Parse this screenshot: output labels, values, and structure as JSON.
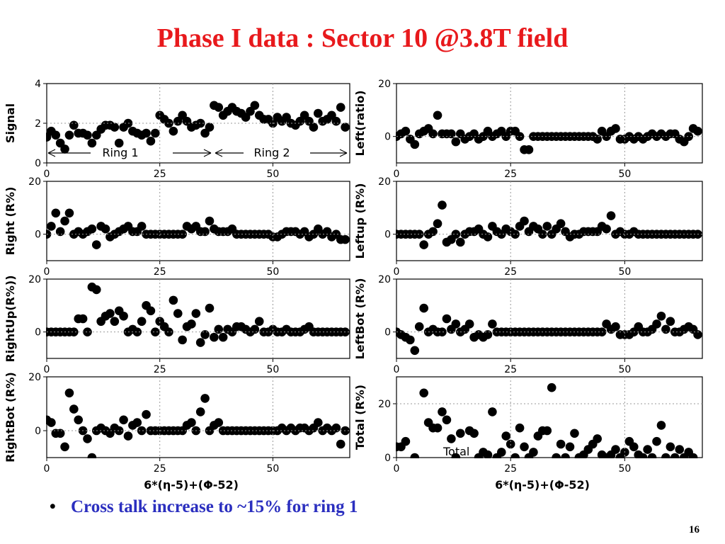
{
  "title": "Phase I data : Sector 10 @3.8T field",
  "bullet": "Cross talk increase to ~15% for ring 1",
  "page_number": "16",
  "colors": {
    "title": "#e8191c",
    "bullet": "#2b2fbf",
    "marker": "#000000",
    "grid": "#999999"
  },
  "chart_data": [
    {
      "type": "scatter",
      "ylabel": "Signal",
      "xlabel": "",
      "xlim": [
        0,
        67
      ],
      "ylim": [
        0,
        4
      ],
      "xticks": [
        "0",
        "25",
        "50"
      ],
      "xtick_values": [
        0,
        25,
        50
      ],
      "yticks": [
        "0",
        "2",
        "4"
      ],
      "ytick_values": [
        0,
        2,
        4
      ],
      "annotations": [
        "Ring 1",
        "Ring 2"
      ],
      "x": [
        0,
        1,
        2,
        3,
        4,
        5,
        6,
        7,
        8,
        9,
        10,
        11,
        12,
        13,
        14,
        15,
        16,
        17,
        18,
        19,
        20,
        21,
        22,
        23,
        24,
        25,
        26,
        27,
        28,
        29,
        30,
        31,
        32,
        33,
        34,
        35,
        36,
        37,
        38,
        39,
        40,
        41,
        42,
        43,
        44,
        45,
        46,
        47,
        48,
        49,
        50,
        51,
        52,
        53,
        54,
        55,
        56,
        57,
        58,
        59,
        60,
        61,
        62,
        63,
        64,
        65,
        66
      ],
      "y": [
        1.3,
        1.6,
        1.4,
        1.0,
        0.7,
        1.4,
        1.9,
        1.5,
        1.5,
        1.4,
        1.0,
        1.4,
        1.7,
        1.9,
        1.9,
        1.8,
        1.0,
        1.8,
        2.0,
        1.6,
        1.5,
        1.4,
        1.5,
        1.1,
        1.5,
        2.4,
        2.2,
        2.0,
        1.6,
        2.1,
        2.4,
        2.1,
        1.8,
        1.9,
        2.0,
        1.5,
        1.8,
        2.9,
        2.8,
        2.4,
        2.6,
        2.8,
        2.6,
        2.5,
        2.3,
        2.6,
        2.9,
        2.4,
        2.2,
        2.2,
        2.0,
        2.3,
        2.1,
        2.3,
        2.0,
        1.9,
        2.1,
        2.4,
        2.1,
        1.8,
        2.5,
        2.1,
        2.2,
        2.4,
        2.1,
        2.8,
        1.8
      ]
    },
    {
      "type": "scatter",
      "ylabel": "Left(ratio)",
      "xlabel": "",
      "xlim": [
        0,
        67
      ],
      "ylim": [
        -10,
        20
      ],
      "xticks": [
        "0",
        "25",
        "50"
      ],
      "xtick_values": [
        0,
        25,
        50
      ],
      "yticks": [
        "0",
        "20"
      ],
      "ytick_values": [
        0,
        20
      ],
      "x": [
        0,
        1,
        2,
        3,
        4,
        5,
        6,
        7,
        8,
        9,
        10,
        11,
        12,
        13,
        14,
        15,
        16,
        17,
        18,
        19,
        20,
        21,
        22,
        23,
        24,
        25,
        26,
        27,
        28,
        29,
        30,
        31,
        32,
        33,
        34,
        35,
        36,
        37,
        38,
        39,
        40,
        41,
        42,
        43,
        44,
        45,
        46,
        47,
        48,
        49,
        50,
        51,
        52,
        53,
        54,
        55,
        56,
        57,
        58,
        59,
        60,
        61,
        62,
        63,
        64,
        65,
        66
      ],
      "y": [
        0,
        1,
        2,
        -1,
        -3,
        1,
        2,
        3,
        1,
        8,
        1,
        1,
        1,
        -2,
        1,
        -1,
        0,
        1,
        -1,
        0,
        2,
        0,
        1,
        2,
        0,
        2,
        2,
        0,
        -5,
        -5,
        0,
        0,
        0,
        0,
        0,
        0,
        0,
        0,
        0,
        0,
        0,
        0,
        0,
        0,
        -1,
        2,
        0,
        2,
        3,
        -1,
        -1,
        0,
        -1,
        0,
        -1,
        0,
        1,
        0,
        1,
        0,
        1,
        1,
        -1,
        -2,
        0,
        3,
        2
      ]
    },
    {
      "type": "scatter",
      "ylabel": "Right (R%)",
      "xlabel": "",
      "xlim": [
        0,
        67
      ],
      "ylim": [
        -10,
        20
      ],
      "xticks": [
        "0",
        "25",
        "50"
      ],
      "xtick_values": [
        0,
        25,
        50
      ],
      "yticks": [
        "0",
        "20"
      ],
      "ytick_values": [
        0,
        20
      ],
      "x": [
        0,
        1,
        2,
        3,
        4,
        5,
        6,
        7,
        8,
        9,
        10,
        11,
        12,
        13,
        14,
        15,
        16,
        17,
        18,
        19,
        20,
        21,
        22,
        23,
        24,
        25,
        26,
        27,
        28,
        29,
        30,
        31,
        32,
        33,
        34,
        35,
        36,
        37,
        38,
        39,
        40,
        41,
        42,
        43,
        44,
        45,
        46,
        47,
        48,
        49,
        50,
        51,
        52,
        53,
        54,
        55,
        56,
        57,
        58,
        59,
        60,
        61,
        62,
        63,
        64,
        65,
        66
      ],
      "y": [
        0,
        3,
        8,
        1,
        5,
        8,
        0,
        1,
        0,
        1,
        2,
        -4,
        3,
        2,
        -1,
        0,
        1,
        2,
        3,
        1,
        1,
        3,
        0,
        0,
        0,
        0,
        0,
        0,
        0,
        0,
        0,
        3,
        2,
        3,
        1,
        1,
        5,
        2,
        1,
        1,
        1,
        2,
        0,
        0,
        0,
        0,
        0,
        0,
        0,
        0,
        -1,
        -1,
        0,
        1,
        1,
        1,
        0,
        1,
        -1,
        0,
        2,
        0,
        1,
        -1,
        0,
        -2,
        -2
      ]
    },
    {
      "type": "scatter",
      "ylabel": "Leftup (R%)",
      "xlabel": "",
      "xlim": [
        0,
        67
      ],
      "ylim": [
        -10,
        20
      ],
      "xticks": [
        "0",
        "25",
        "50"
      ],
      "xtick_values": [
        0,
        25,
        50
      ],
      "yticks": [
        "0",
        "20"
      ],
      "ytick_values": [
        0,
        20
      ],
      "x": [
        0,
        1,
        2,
        3,
        4,
        5,
        6,
        7,
        8,
        9,
        10,
        11,
        12,
        13,
        14,
        15,
        16,
        17,
        18,
        19,
        20,
        21,
        22,
        23,
        24,
        25,
        26,
        27,
        28,
        29,
        30,
        31,
        32,
        33,
        34,
        35,
        36,
        37,
        38,
        39,
        40,
        41,
        42,
        43,
        44,
        45,
        46,
        47,
        48,
        49,
        50,
        51,
        52,
        53,
        54,
        55,
        56,
        57,
        58,
        59,
        60,
        61,
        62,
        63,
        64,
        65,
        66
      ],
      "y": [
        0,
        0,
        0,
        0,
        0,
        0,
        -4,
        0,
        1,
        4,
        11,
        -3,
        -2,
        0,
        -3,
        0,
        1,
        1,
        2,
        0,
        -1,
        3,
        1,
        0,
        2,
        1,
        0,
        3,
        5,
        1,
        3,
        2,
        0,
        3,
        0,
        2,
        4,
        1,
        -1,
        0,
        0,
        1,
        1,
        1,
        1,
        3,
        2,
        7,
        0,
        1,
        0,
        0,
        1,
        0,
        0,
        0,
        0,
        0,
        0,
        0,
        0,
        0,
        0,
        0,
        0,
        0,
        0
      ]
    },
    {
      "type": "scatter",
      "ylabel": "RightUp(R%))",
      "xlabel": "",
      "xlim": [
        0,
        67
      ],
      "ylim": [
        -10,
        20
      ],
      "xticks": [
        "0",
        "25",
        "50"
      ],
      "xtick_values": [
        0,
        25,
        50
      ],
      "yticks": [
        "0",
        "20"
      ],
      "ytick_values": [
        0,
        20
      ],
      "x": [
        0,
        1,
        2,
        3,
        4,
        5,
        6,
        7,
        8,
        9,
        10,
        11,
        12,
        13,
        14,
        15,
        16,
        17,
        18,
        19,
        20,
        21,
        22,
        23,
        24,
        25,
        26,
        27,
        28,
        29,
        30,
        31,
        32,
        33,
        34,
        35,
        36,
        37,
        38,
        39,
        40,
        41,
        42,
        43,
        44,
        45,
        46,
        47,
        48,
        49,
        50,
        51,
        52,
        53,
        54,
        55,
        56,
        57,
        58,
        59,
        60,
        61,
        62,
        63,
        64,
        65,
        66
      ],
      "y": [
        0,
        0,
        0,
        0,
        0,
        0,
        0,
        5,
        5,
        0,
        17,
        16,
        4,
        6,
        7,
        4,
        8,
        6,
        0,
        1,
        0,
        4,
        10,
        8,
        0,
        4,
        2,
        0,
        12,
        7,
        -3,
        2,
        3,
        7,
        -4,
        -1,
        9,
        -2,
        1,
        -2,
        1,
        0,
        2,
        2,
        1,
        0,
        1,
        4,
        0,
        0,
        1,
        0,
        0,
        1,
        0,
        0,
        0,
        1,
        2,
        0,
        0,
        0,
        0,
        0,
        0,
        0,
        0
      ]
    },
    {
      "type": "scatter",
      "ylabel": "LeftBot (R%)",
      "xlabel": "",
      "xlim": [
        0,
        67
      ],
      "ylim": [
        -10,
        20
      ],
      "xticks": [
        "0",
        "25",
        "50"
      ],
      "xtick_values": [
        0,
        25,
        50
      ],
      "yticks": [
        "0",
        "20"
      ],
      "ytick_values": [
        0,
        20
      ],
      "x": [
        0,
        1,
        2,
        3,
        4,
        5,
        6,
        7,
        8,
        9,
        10,
        11,
        12,
        13,
        14,
        15,
        16,
        17,
        18,
        19,
        20,
        21,
        22,
        23,
        24,
        25,
        26,
        27,
        28,
        29,
        30,
        31,
        32,
        33,
        34,
        35,
        36,
        37,
        38,
        39,
        40,
        41,
        42,
        43,
        44,
        45,
        46,
        47,
        48,
        49,
        50,
        51,
        52,
        53,
        54,
        55,
        56,
        57,
        58,
        59,
        60,
        61,
        62,
        63,
        64,
        65,
        66
      ],
      "y": [
        0,
        -1,
        -2,
        -3,
        -7,
        2,
        9,
        0,
        1,
        0,
        0,
        5,
        1,
        3,
        0,
        1,
        3,
        -2,
        -1,
        -2,
        -1,
        3,
        0,
        0,
        0,
        0,
        0,
        0,
        0,
        0,
        0,
        0,
        0,
        0,
        0,
        0,
        0,
        0,
        0,
        0,
        0,
        0,
        0,
        0,
        0,
        0,
        3,
        1,
        2,
        -1,
        -1,
        -1,
        0,
        2,
        0,
        0,
        1,
        3,
        6,
        1,
        4,
        0,
        0,
        1,
        2,
        1,
        -1
      ]
    },
    {
      "type": "scatter",
      "ylabel": "RightBot (R%)",
      "xlabel": "6*(η-5)+(Φ-52)",
      "xlim": [
        0,
        67
      ],
      "ylim": [
        -10,
        20
      ],
      "xticks": [
        "0",
        "25",
        "50"
      ],
      "xtick_values": [
        0,
        25,
        50
      ],
      "yticks": [
        "0",
        "20"
      ],
      "ytick_values": [
        0,
        20
      ],
      "x": [
        0,
        1,
        2,
        3,
        4,
        5,
        6,
        7,
        8,
        9,
        10,
        11,
        12,
        13,
        14,
        15,
        16,
        17,
        18,
        19,
        20,
        21,
        22,
        23,
        24,
        25,
        26,
        27,
        28,
        29,
        30,
        31,
        32,
        33,
        34,
        35,
        36,
        37,
        38,
        39,
        40,
        41,
        42,
        43,
        44,
        45,
        46,
        47,
        48,
        49,
        50,
        51,
        52,
        53,
        54,
        55,
        56,
        57,
        58,
        59,
        60,
        61,
        62,
        63,
        64,
        65,
        66
      ],
      "y": [
        4,
        3,
        -1,
        -1,
        -6,
        14,
        8,
        4,
        0,
        -3,
        -10,
        0,
        1,
        0,
        -1,
        1,
        0,
        4,
        -2,
        2,
        3,
        0,
        6,
        0,
        0,
        0,
        0,
        0,
        0,
        0,
        0,
        2,
        3,
        0,
        7,
        12,
        0,
        2,
        3,
        0,
        0,
        0,
        0,
        0,
        0,
        0,
        0,
        0,
        0,
        0,
        0,
        0,
        1,
        0,
        1,
        0,
        1,
        1,
        0,
        1,
        3,
        0,
        1,
        0,
        1,
        -5,
        0
      ]
    },
    {
      "type": "scatter",
      "ylabel": "Total (R%)",
      "xlabel": "6*(η-5)+(Φ-52)",
      "xlim": [
        0,
        67
      ],
      "ylim": [
        0,
        30
      ],
      "xticks": [
        "0",
        "25",
        "50"
      ],
      "xtick_values": [
        0,
        25,
        50
      ],
      "yticks": [
        "0",
        "20"
      ],
      "ytick_values": [
        0,
        20
      ],
      "annotations": [
        "Total"
      ],
      "x": [
        0,
        1,
        2,
        4,
        6,
        7,
        8,
        9,
        10,
        11,
        12,
        13,
        14,
        16,
        17,
        18,
        19,
        20,
        21,
        22,
        23,
        24,
        25,
        26,
        27,
        28,
        29,
        30,
        31,
        32,
        33,
        34,
        35,
        36,
        37,
        38,
        39,
        40,
        41,
        42,
        43,
        44,
        45,
        46,
        47,
        48,
        49,
        50,
        51,
        52,
        53,
        54,
        55,
        56,
        57,
        58,
        59,
        60,
        61,
        62,
        63,
        64,
        65
      ],
      "y": [
        4,
        4,
        6,
        0,
        24,
        13,
        11,
        11,
        17,
        14,
        7,
        0,
        9,
        10,
        9,
        0,
        2,
        1,
        17,
        0,
        2,
        8,
        5,
        0,
        11,
        4,
        0,
        2,
        8,
        10,
        10,
        26,
        0,
        5,
        0,
        4,
        9,
        0,
        1,
        3,
        5,
        7,
        1,
        0,
        1,
        3,
        0,
        2,
        6,
        4,
        1,
        0,
        3,
        0,
        6,
        12,
        0,
        4,
        0,
        3,
        0,
        2,
        0
      ]
    }
  ]
}
